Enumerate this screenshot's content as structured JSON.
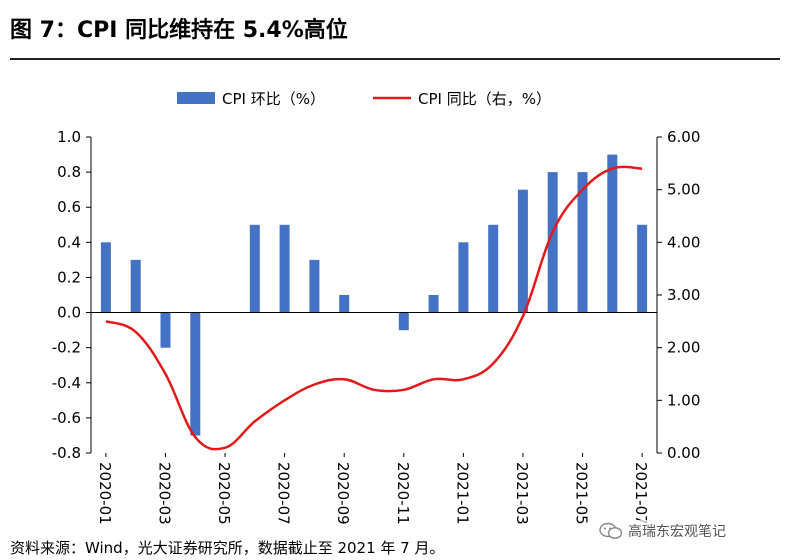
{
  "title": "图 7：CPI 同比维持在 5.4%高位",
  "source": "资料来源：Wind，光大证券研究所，数据截止至 2021 年 7 月。",
  "watermark": {
    "text": "高瑞东宏观笔记",
    "icon": "wechat-icon"
  },
  "colors": {
    "bar": "#4472C4",
    "line": "#E31A1C",
    "axis": "#000000"
  },
  "chart_data": {
    "type": "bar+line",
    "categories": [
      "2020-01",
      "2020-02",
      "2020-03",
      "2020-04",
      "2020-05",
      "2020-06",
      "2020-07",
      "2020-08",
      "2020-09",
      "2020-10",
      "2020-11",
      "2020-12",
      "2021-01",
      "2021-02",
      "2021-03",
      "2021-04",
      "2021-05",
      "2021-06",
      "2021-07"
    ],
    "x_tick_labels": [
      "2020-01",
      "2020-03",
      "2020-05",
      "2020-07",
      "2020-09",
      "2020-11",
      "2021-01",
      "2021-03",
      "2021-05",
      "2021-07"
    ],
    "series": [
      {
        "name": "CPI 环比（%）",
        "type": "bar",
        "axis": "left",
        "values": [
          0.4,
          0.3,
          -0.2,
          -0.7,
          0.0,
          0.5,
          0.5,
          0.3,
          0.1,
          0.0,
          -0.1,
          0.1,
          0.4,
          0.5,
          0.7,
          0.8,
          0.8,
          0.9,
          0.5
        ]
      },
      {
        "name": "CPI 同比（右，%）",
        "type": "line",
        "axis": "right",
        "values": [
          2.5,
          2.3,
          1.5,
          0.3,
          0.1,
          0.6,
          1.0,
          1.3,
          1.4,
          1.2,
          1.2,
          1.4,
          1.4,
          1.7,
          2.6,
          4.2,
          5.0,
          5.4,
          5.4
        ]
      }
    ],
    "left_axis": {
      "ylim": [
        -0.8,
        1.0
      ],
      "ticks": [
        -0.8,
        -0.6,
        -0.4,
        -0.2,
        0.0,
        0.2,
        0.4,
        0.6,
        0.8,
        1.0
      ],
      "tick_labels": [
        "-0.8",
        "-0.6",
        "-0.4",
        "-0.2",
        "0.0",
        "0.2",
        "0.4",
        "0.6",
        "0.8",
        "1.0"
      ]
    },
    "right_axis": {
      "ylim": [
        0.0,
        6.0
      ],
      "ticks": [
        0,
        1,
        2,
        3,
        4,
        5,
        6
      ],
      "tick_labels": [
        "0.00",
        "1.00",
        "2.00",
        "3.00",
        "4.00",
        "5.00",
        "6.00"
      ]
    },
    "legend": {
      "placement": "top-center",
      "entries": [
        "CPI 环比（%）",
        "CPI 同比（右，%）"
      ]
    }
  }
}
